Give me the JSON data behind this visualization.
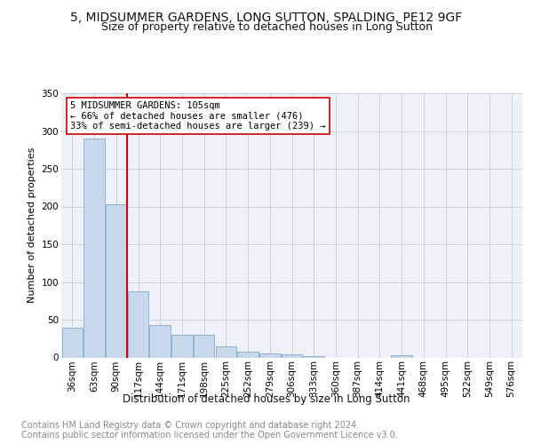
{
  "title": "5, MIDSUMMER GARDENS, LONG SUTTON, SPALDING, PE12 9GF",
  "subtitle": "Size of property relative to detached houses in Long Sutton",
  "xlabel": "Distribution of detached houses by size in Long Sutton",
  "ylabel": "Number of detached properties",
  "categories": [
    "36sqm",
    "63sqm",
    "90sqm",
    "117sqm",
    "144sqm",
    "171sqm",
    "198sqm",
    "225sqm",
    "252sqm",
    "279sqm",
    "306sqm",
    "333sqm",
    "360sqm",
    "387sqm",
    "414sqm",
    "441sqm",
    "468sqm",
    "495sqm",
    "522sqm",
    "549sqm",
    "576sqm"
  ],
  "values": [
    40,
    290,
    203,
    88,
    43,
    30,
    30,
    15,
    8,
    5,
    4,
    2,
    0,
    0,
    0,
    3,
    0,
    0,
    0,
    0,
    0
  ],
  "bar_color": "#c8d8ea",
  "bar_edge_color": "#85aac8",
  "grid_color": "#c8ccd8",
  "bg_color": "#eef2f8",
  "vline_color": "#cc0000",
  "annotation_text": "5 MIDSUMMER GARDENS: 105sqm\n← 66% of detached houses are smaller (476)\n33% of semi-detached houses are larger (239) →",
  "annotation_box_color": "#ffffff",
  "annotation_box_edge": "#cc0000",
  "ylim": [
    0,
    350
  ],
  "yticks": [
    0,
    50,
    100,
    150,
    200,
    250,
    300,
    350
  ],
  "title_fontsize": 10,
  "subtitle_fontsize": 9,
  "axis_label_fontsize": 8,
  "tick_fontsize": 7.5,
  "annotation_fontsize": 7.5,
  "xlabel_fontsize": 8.5,
  "footer_fontsize": 7,
  "footer_color": "#888888",
  "footer_line1": "Contains HM Land Registry data © Crown copyright and database right 2024.",
  "footer_line2": "Contains public sector information licensed under the Open Government Licence v3.0."
}
